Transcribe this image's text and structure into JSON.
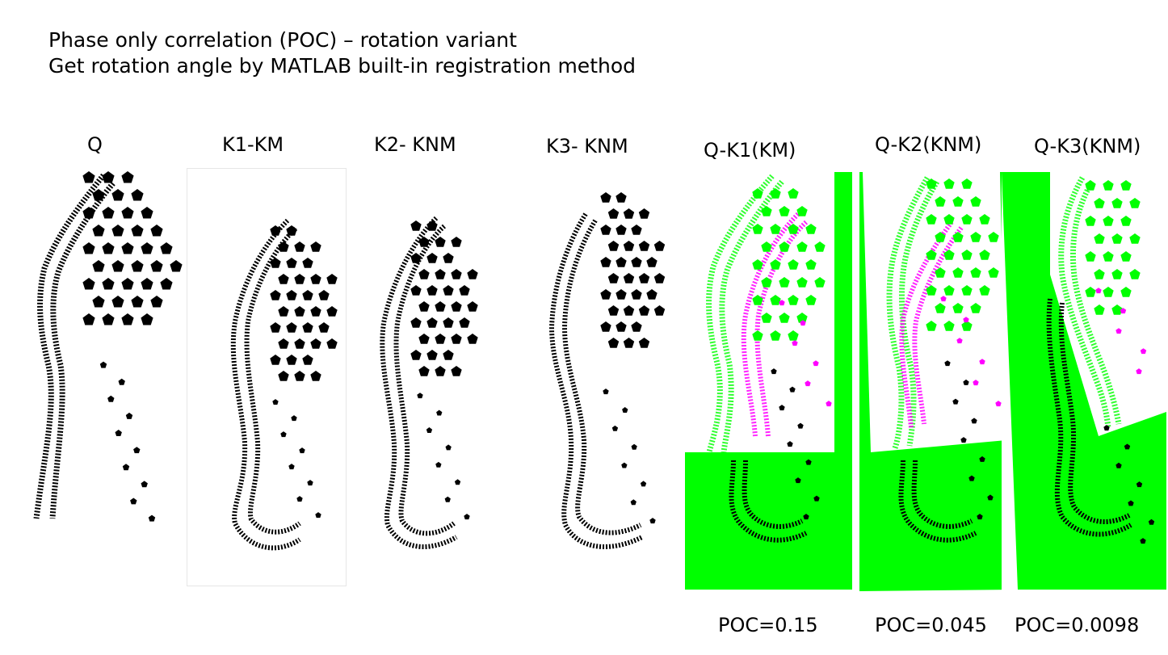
{
  "title": {
    "line1": "Phase only correlation (POC) – rotation variant",
    "line2": "Get rotation angle by MATLAB built-in registration method"
  },
  "panels": [
    {
      "label": "Q"
    },
    {
      "label": "K1-KM"
    },
    {
      "label": "K2- KNM"
    },
    {
      "label": "K3- KNM"
    },
    {
      "label": "Q-K1(KM)",
      "poc": "POC=0.15"
    },
    {
      "label": "Q-K2(KNM)",
      "poc": "POC=0.045"
    },
    {
      "label": "Q-K3(KNM)",
      "poc": "POC=0.0098"
    }
  ],
  "colors": {
    "print": "#000000",
    "green": "#00ff00",
    "magenta": "#ff00ff",
    "background": "#ffffff"
  }
}
